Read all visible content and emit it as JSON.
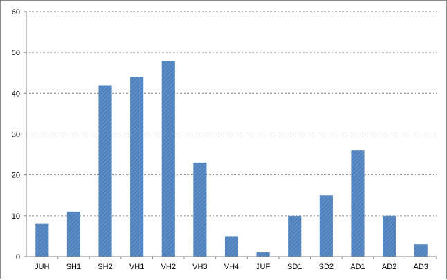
{
  "chart_data": {
    "type": "bar",
    "title": "",
    "xlabel": "",
    "ylabel": "",
    "categories": [
      "JUH",
      "SH1",
      "SH2",
      "VH1",
      "VH2",
      "VH3",
      "VH4",
      "JUF",
      "SD1",
      "SD2",
      "AD1",
      "AD2",
      "AD3"
    ],
    "values": [
      8,
      11,
      42,
      44,
      48,
      23,
      5,
      1,
      10,
      15,
      26,
      10,
      3
    ],
    "ylim": [
      0,
      60
    ],
    "yticks": [
      0,
      10,
      20,
      30,
      40,
      50,
      60
    ],
    "grid": true,
    "legend": "none",
    "bar_color": "#4f81bd",
    "bar_fill": "diagonal-hatch"
  }
}
